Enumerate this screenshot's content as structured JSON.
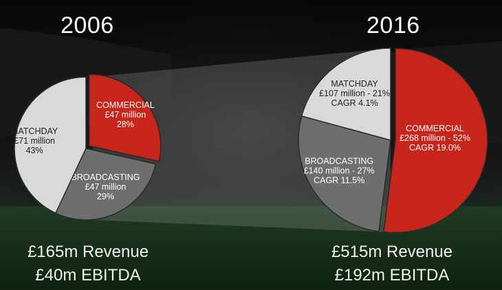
{
  "chart_data": [
    {
      "type": "pie",
      "title": "2006",
      "slices": [
        {
          "label": "COMMERCIAL",
          "value_text": "£47 million",
          "extra": "28%",
          "value": 47,
          "color": "#c8261b"
        },
        {
          "label": "BROADCASTING",
          "value_text": "£47 million",
          "extra": "29%",
          "value": 47,
          "color": "#6e6e6e"
        },
        {
          "label": "MATCHDAY",
          "value_text": "£71 million",
          "extra": "43%",
          "value": 71,
          "color": "#d9d9d9"
        }
      ],
      "footer": [
        "£165m Revenue",
        "£40m EBITDA"
      ]
    },
    {
      "type": "pie",
      "title": "2016",
      "slices": [
        {
          "label": "COMMERCIAL",
          "value_text": "£268 million - 52%",
          "extra": "CAGR 19.0%",
          "value": 268,
          "color": "#c8261b"
        },
        {
          "label": "BROADCASTING",
          "value_text": "£140 million - 27%",
          "extra": "CAGR 11.5%",
          "value": 140,
          "color": "#6e6e6e"
        },
        {
          "label": "MATCHDAY",
          "value_text": "£107 million - 21%",
          "extra": "CAGR 4.1%",
          "value": 107,
          "color": "#d9d9d9"
        }
      ],
      "footer": [
        "£515m Revenue",
        "£192m EBITDA"
      ]
    }
  ],
  "colors": {
    "commercial": "#c8261b",
    "broadcasting": "#6e6e6e",
    "matchday": "#d9d9d9",
    "background": "#0b0b0b"
  }
}
